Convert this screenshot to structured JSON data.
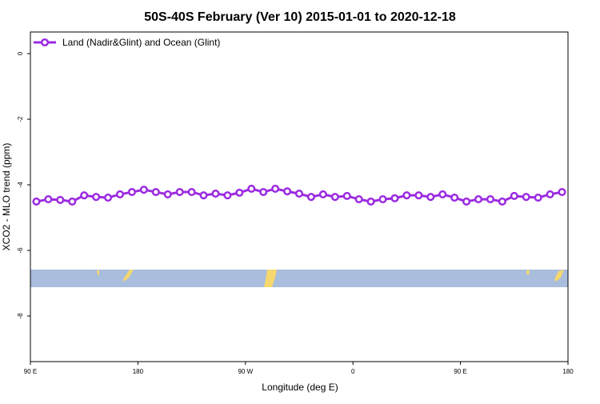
{
  "chart_data": {
    "type": "line",
    "title": "50S-40S February (Ver 10)   2015-01-01 to 2020-12-18",
    "xlabel": "Longitude (deg E)",
    "ylabel": "XCO2 - MLO trend (ppm)",
    "x": [
      95,
      105,
      115,
      125,
      135,
      145,
      155,
      165,
      175,
      185,
      195,
      205,
      215,
      225,
      235,
      245,
      255,
      265,
      275,
      285,
      295,
      305,
      315,
      325,
      335,
      345,
      355,
      365,
      375,
      385,
      395,
      405,
      415,
      425,
      435,
      445,
      455,
      465,
      475,
      485,
      495,
      505,
      515,
      525,
      535
    ],
    "series": [
      {
        "name": "Land (Nadir&Glint) and Ocean (Glint)",
        "color": "#9b2be2",
        "values": [
          -4.51,
          -4.44,
          -4.46,
          -4.51,
          -4.32,
          -4.37,
          -4.39,
          -4.29,
          -4.22,
          -4.15,
          -4.22,
          -4.29,
          -4.22,
          -4.22,
          -4.32,
          -4.27,
          -4.32,
          -4.24,
          -4.12,
          -4.22,
          -4.12,
          -4.2,
          -4.27,
          -4.37,
          -4.29,
          -4.37,
          -4.34,
          -4.44,
          -4.51,
          -4.44,
          -4.41,
          -4.32,
          -4.32,
          -4.37,
          -4.29,
          -4.39,
          -4.51,
          -4.44,
          -4.44,
          -4.51,
          -4.34,
          -4.37,
          -4.39,
          -4.29,
          -4.22
        ]
      }
    ],
    "xlim": [
      90,
      540
    ],
    "xticks": [
      {
        "value": 90,
        "label": "90 E"
      },
      {
        "value": 180,
        "label": "180"
      },
      {
        "value": 270,
        "label": "90 W"
      },
      {
        "value": 360,
        "label": "0"
      },
      {
        "value": 450,
        "label": "90 E"
      },
      {
        "value": 540,
        "label": "180"
      }
    ],
    "ylim": [
      -9.39,
      0.66
    ],
    "yticks": [
      0,
      -2,
      -4,
      -6,
      -8
    ],
    "legend": "top-left"
  }
}
